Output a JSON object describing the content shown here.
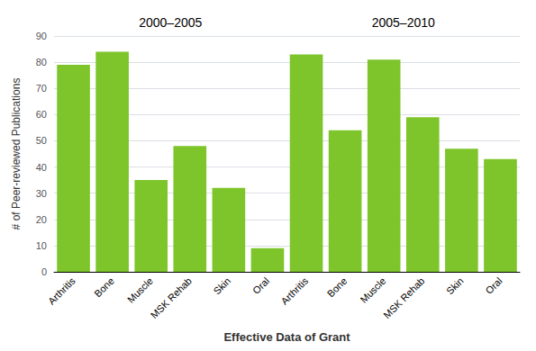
{
  "chart_data": {
    "type": "bar",
    "xlabel": "Effective Data of Grant",
    "ylabel": "# of Peer-reviewed Publications",
    "groups": [
      {
        "label": "2000–2005",
        "categories": [
          "Arthritis",
          "Bone",
          "Muscle",
          "MSK Rehab",
          "Skin",
          "Oral"
        ],
        "values": [
          79,
          84,
          35,
          48,
          32,
          9
        ]
      },
      {
        "label": "2005–2010",
        "categories": [
          "Arthritis",
          "Bone",
          "Muscle",
          "MSK Rehab",
          "Skin",
          "Oral"
        ],
        "values": [
          83,
          54,
          81,
          59,
          47,
          43
        ]
      }
    ],
    "color": "#7DC52A",
    "ylim": [
      0,
      90
    ],
    "yticks": [
      0,
      10,
      20,
      30,
      40,
      50,
      60,
      70,
      80,
      90
    ],
    "grid": true
  }
}
